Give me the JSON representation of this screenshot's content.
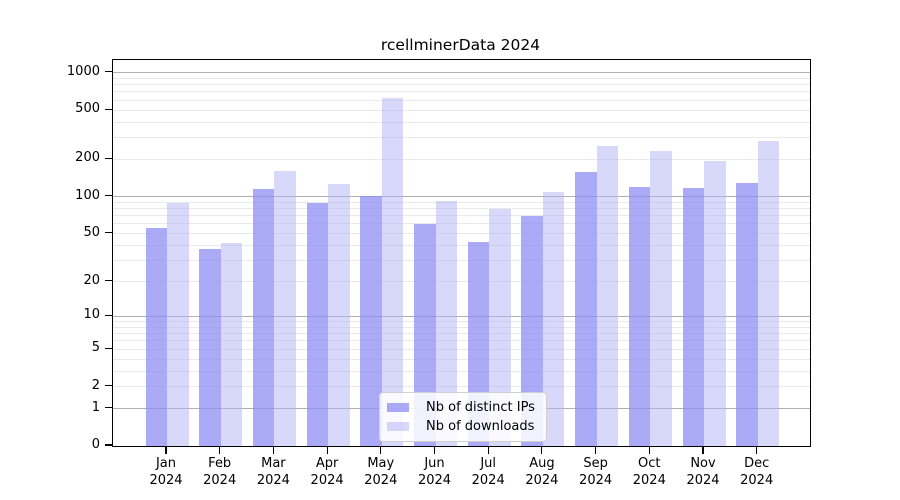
{
  "chart_data": {
    "type": "bar",
    "title": "rcellminerData 2024",
    "categories": [
      "Jan 2024",
      "Feb 2024",
      "Mar 2024",
      "Apr 2024",
      "May 2024",
      "Jun 2024",
      "Jul 2024",
      "Aug 2024",
      "Sep 2024",
      "Oct 2024",
      "Nov 2024",
      "Dec 2024"
    ],
    "series": [
      {
        "name": "Nb of distinct IPs",
        "color": "#8d8df3",
        "opacity": 0.75,
        "values": [
          56,
          37,
          115,
          89,
          101,
          60,
          43,
          70,
          158,
          120,
          117,
          130
        ]
      },
      {
        "name": "Nb of downloads",
        "color": "#b2b2f6",
        "opacity": 0.5,
        "values": [
          89,
          42,
          160,
          127,
          630,
          92,
          80,
          110,
          258,
          234,
          194,
          280
        ]
      }
    ],
    "yscale": "log1p",
    "y_ticks": [
      0,
      1,
      2,
      5,
      10,
      20,
      50,
      100,
      200,
      500,
      1000
    ],
    "ylim": [
      0,
      1270
    ],
    "grid": {
      "enabled": true,
      "major_at": [
        1,
        10,
        100,
        1000
      ],
      "major_color": "#b0b0b0",
      "minor_color": "#e9e9e9"
    },
    "legend_position": "inside-bottom-center",
    "axis_color": "#000000",
    "background_color": "#ffffff"
  }
}
